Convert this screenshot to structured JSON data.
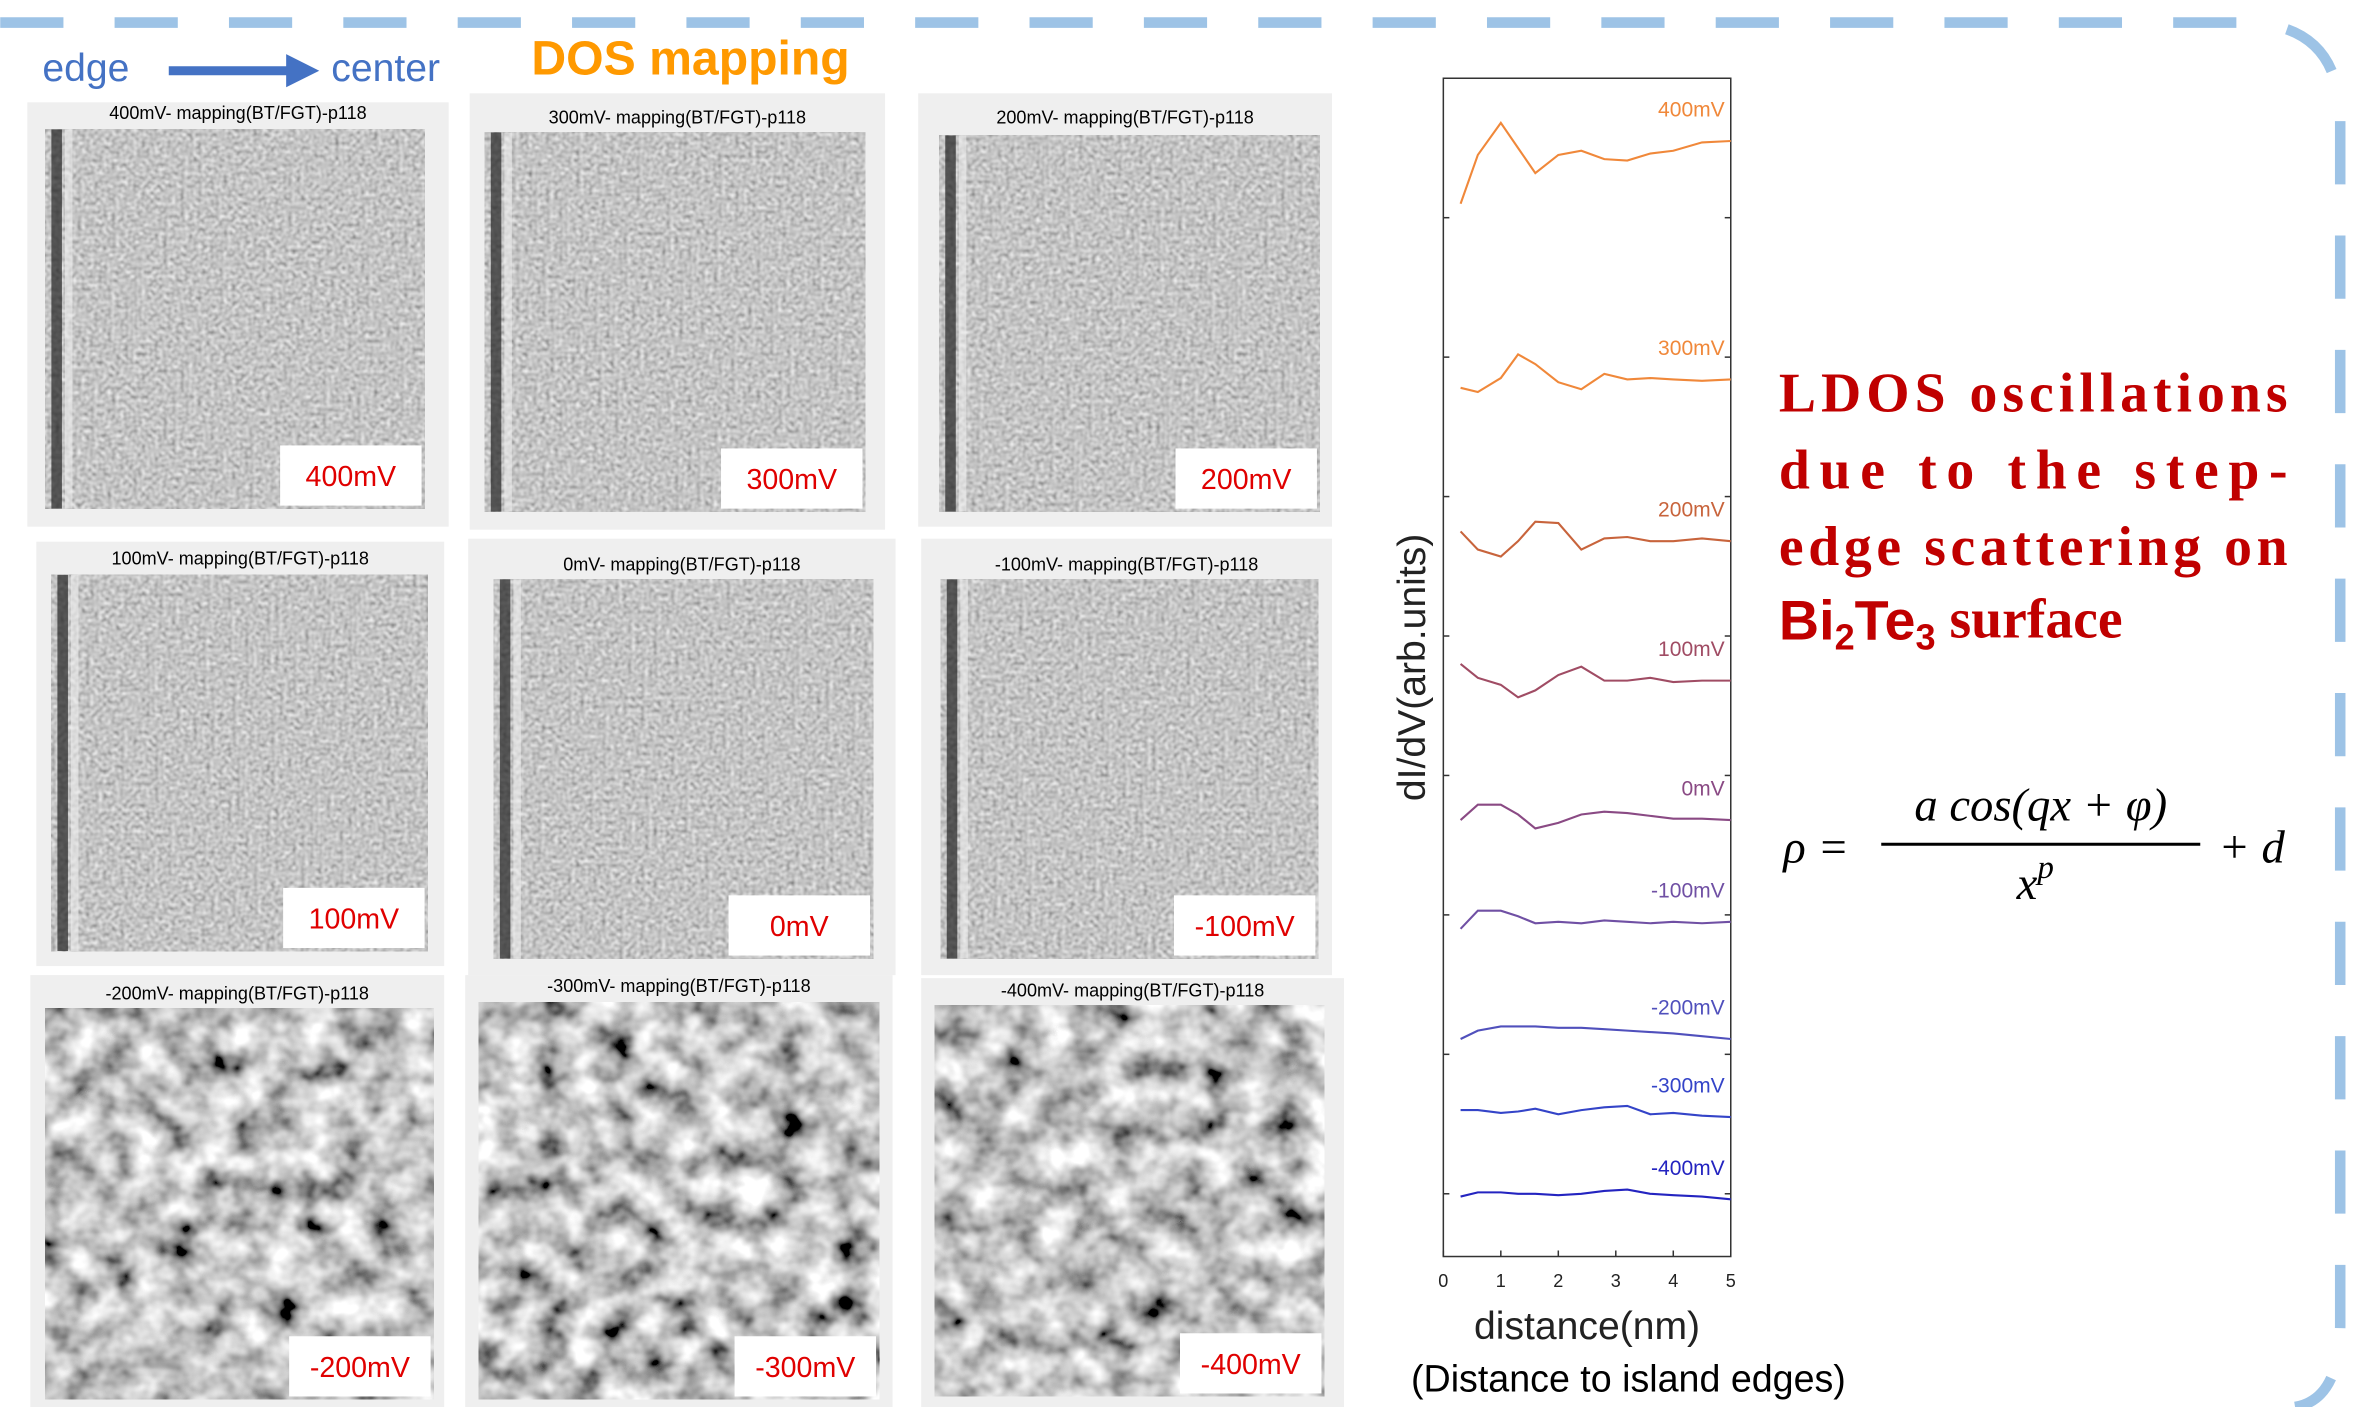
{
  "header": {
    "edge": "edge",
    "center": "center",
    "title": "DOS mapping"
  },
  "maps": [
    {
      "title": "400mV- mapping(BT/FGT)-p118",
      "label": "400mV"
    },
    {
      "title": "300mV- mapping(BT/FGT)-p118",
      "label": "300mV"
    },
    {
      "title": "200mV- mapping(BT/FGT)-p118",
      "label": "200mV"
    },
    {
      "title": "100mV- mapping(BT/FGT)-p118",
      "label": "100mV"
    },
    {
      "title": "0mV- mapping(BT/FGT)-p118",
      "label": "0mV"
    },
    {
      "title": "-100mV- mapping(BT/FGT)-p118",
      "label": "-100mV"
    },
    {
      "title": "-200mV- mapping(BT/FGT)-p118",
      "label": "-200mV"
    },
    {
      "title": "-300mV- mapping(BT/FGT)-p118",
      "label": "-300mV"
    },
    {
      "title": "-400mV- mapping(BT/FGT)-p118",
      "label": "-400mV"
    }
  ],
  "chart_data": {
    "type": "line",
    "y_label": "dI/dV(arb.units)",
    "x_label": "distance(nm)",
    "x_note": "(Distance to island edges)",
    "x": [
      0.3,
      0.6,
      1,
      1.3,
      1.6,
      2,
      2.4,
      2.8,
      3.2,
      3.6,
      4,
      4.5,
      5
    ],
    "xlim": [
      0,
      5
    ],
    "xticks": [
      0,
      1,
      2,
      3,
      4,
      5
    ],
    "ylim": [
      -0.45,
      8
    ],
    "yticks": [
      0,
      1,
      2,
      3,
      4,
      5,
      6,
      7
    ],
    "series": [
      {
        "name": "400mV",
        "color": "#f0883a",
        "values": [
          7.1,
          7.45,
          7.68,
          7.5,
          7.32,
          7.45,
          7.48,
          7.42,
          7.41,
          7.46,
          7.48,
          7.54,
          7.55
        ]
      },
      {
        "name": "300mV",
        "color": "#f0883a",
        "values": [
          5.78,
          5.75,
          5.85,
          6.02,
          5.95,
          5.82,
          5.77,
          5.88,
          5.84,
          5.85,
          5.84,
          5.83,
          5.84
        ]
      },
      {
        "name": "200mV",
        "color": "#c8643c",
        "values": [
          4.75,
          4.62,
          4.57,
          4.68,
          4.82,
          4.81,
          4.62,
          4.7,
          4.71,
          4.68,
          4.68,
          4.7,
          4.68
        ]
      },
      {
        "name": "100mV",
        "color": "#a04c64",
        "values": [
          3.8,
          3.7,
          3.65,
          3.56,
          3.61,
          3.72,
          3.78,
          3.68,
          3.68,
          3.7,
          3.67,
          3.68,
          3.68
        ]
      },
      {
        "name": "0mV",
        "color": "#8a4a84",
        "values": [
          2.68,
          2.79,
          2.79,
          2.72,
          2.62,
          2.66,
          2.72,
          2.74,
          2.73,
          2.71,
          2.69,
          2.69,
          2.68
        ]
      },
      {
        "name": "-100mV",
        "color": "#7050a4",
        "values": [
          1.9,
          2.03,
          2.03,
          1.99,
          1.94,
          1.95,
          1.94,
          1.96,
          1.95,
          1.94,
          1.95,
          1.94,
          1.95
        ]
      },
      {
        "name": "-200mV",
        "color": "#5050bc",
        "values": [
          1.11,
          1.17,
          1.2,
          1.2,
          1.2,
          1.19,
          1.19,
          1.18,
          1.17,
          1.16,
          1.15,
          1.13,
          1.11
        ]
      },
      {
        "name": "-300mV",
        "color": "#3444c8",
        "values": [
          0.6,
          0.6,
          0.58,
          0.59,
          0.61,
          0.57,
          0.6,
          0.62,
          0.63,
          0.57,
          0.58,
          0.56,
          0.55
        ]
      },
      {
        "name": "-400mV",
        "color": "#2424c0",
        "values": [
          -0.02,
          0.01,
          0.01,
          0.0,
          0.0,
          -0.01,
          0.0,
          0.02,
          0.03,
          0.0,
          -0.01,
          -0.02,
          -0.04
        ]
      }
    ]
  },
  "note": {
    "lines": [
      "LDOS oscillations",
      "due to the step-",
      "edge scattering on"
    ],
    "bi": "Bi",
    "bi_sub": "2",
    "te": "Te",
    "te_sub": "3",
    "tail": " surface"
  },
  "formula": {
    "lhs": "ρ =",
    "numerator": "a cos(qx + φ)",
    "denominator": "x",
    "exponent": "p",
    "rhs": "+ d"
  }
}
